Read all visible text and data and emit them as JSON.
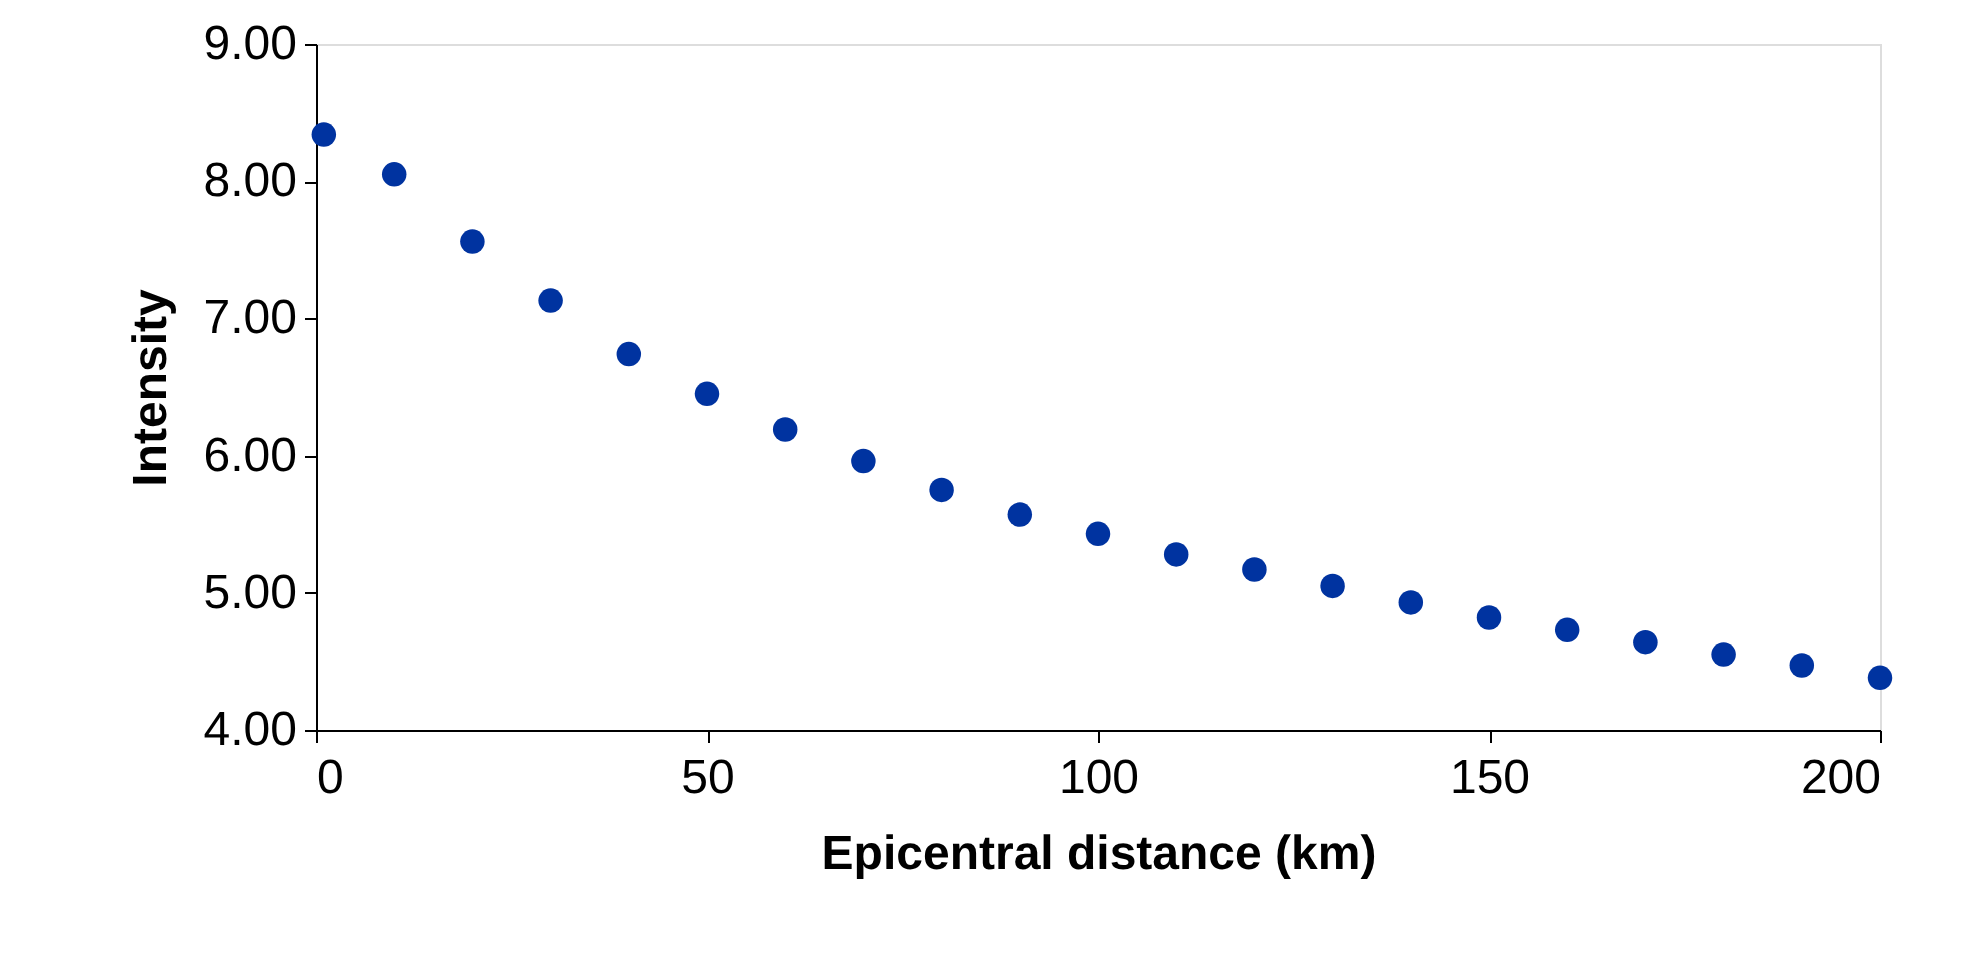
{
  "chart_data": {
    "type": "scatter",
    "xlabel": "Epicentral distance (km)",
    "ylabel": "Intensity",
    "x": [
      1,
      10,
      20,
      30,
      40,
      50,
      60,
      70,
      80,
      90,
      100,
      110,
      120,
      130,
      140,
      150,
      160,
      170,
      180,
      190,
      200
    ],
    "series": [
      {
        "color": "#0033a0",
        "values": [
          8.34,
          8.05,
          7.56,
          7.13,
          6.74,
          6.45,
          6.19,
          5.96,
          5.75,
          5.57,
          5.43,
          5.28,
          5.17,
          5.05,
          4.93,
          4.82,
          4.73,
          4.64,
          4.55,
          4.47,
          4.38
        ]
      }
    ],
    "xlim": [
      0,
      200
    ],
    "xticks": [
      0,
      50,
      100,
      150,
      200
    ],
    "ylim": [
      4,
      9
    ],
    "yticks": [
      {
        "value": 4,
        "label": "4.00"
      },
      {
        "value": 5,
        "label": "5.00"
      },
      {
        "value": 6,
        "label": "6.00"
      },
      {
        "value": 7,
        "label": "7.00"
      },
      {
        "value": 8,
        "label": "8.00"
      },
      {
        "value": 9,
        "label": "9.00"
      }
    ],
    "marker": "circle",
    "grid": false
  }
}
